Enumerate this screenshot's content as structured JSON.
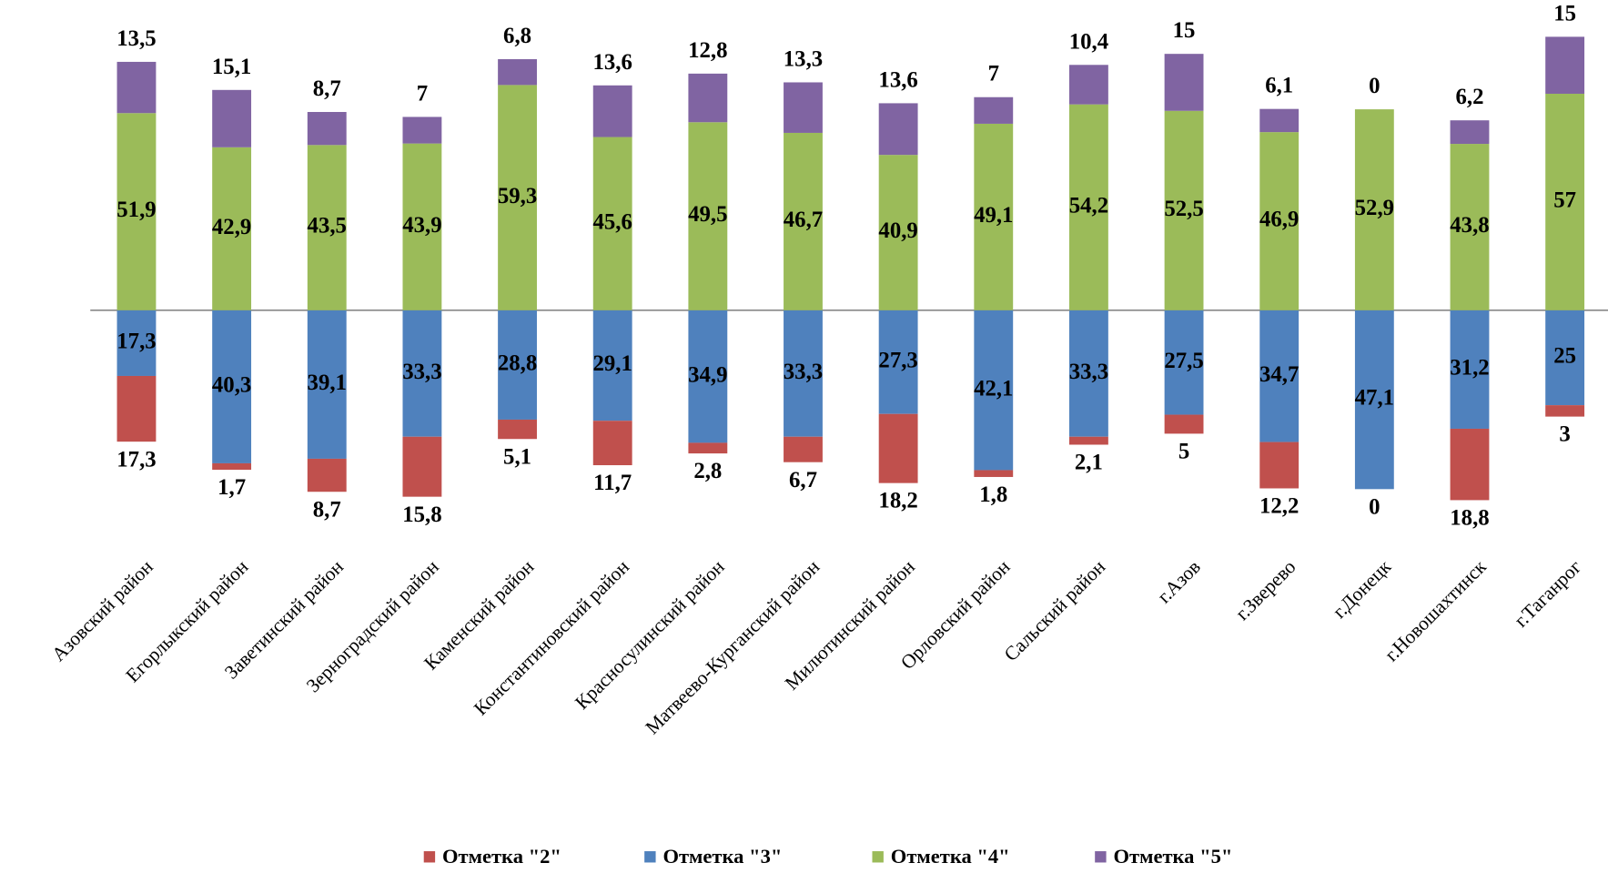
{
  "chart_data": {
    "type": "diverging-stacked-bar",
    "categories": [
      "Азовский район",
      "Егорлыкский район",
      "Заветинский район",
      "Зерноградский район",
      "Каменский район",
      "Константиновский район",
      "Красносулинский район",
      "Матвеево-Курганский район",
      "Милютинский район",
      "Орловский район",
      "Сальский район",
      "г.Азов",
      "г.Зверево",
      "г.Донецк",
      "г.Новошахтинск",
      "г.Таганрог"
    ],
    "series": [
      {
        "name": "Отметка \"2\"",
        "color": "#c0504d",
        "side": "below",
        "values": [
          17.3,
          1.7,
          8.7,
          15.8,
          5.1,
          11.7,
          2.8,
          6.7,
          18.2,
          1.8,
          2.1,
          5,
          12.2,
          0,
          18.8,
          3
        ],
        "value_labels": [
          "17,3",
          "1,7",
          "8,7",
          "15,8",
          "5,1",
          "11,7",
          "2,8",
          "6,7",
          "18,2",
          "1,8",
          "2,1",
          "5",
          "12,2",
          "0",
          "18,8",
          "3"
        ]
      },
      {
        "name": "Отметка \"3\"",
        "color": "#4f81bd",
        "side": "below",
        "values": [
          17.3,
          40.3,
          39.1,
          33.3,
          28.8,
          29.1,
          34.9,
          33.3,
          27.3,
          42.1,
          33.3,
          27.5,
          34.7,
          47.1,
          31.2,
          25
        ],
        "value_labels": [
          "17,3",
          "40,3",
          "39,1",
          "33,3",
          "28,8",
          "29,1",
          "34,9",
          "33,3",
          "27,3",
          "42,1",
          "33,3",
          "27,5",
          "34,7",
          "47,1",
          "31,2",
          "25"
        ]
      },
      {
        "name": "Отметка \"4\"",
        "color": "#9bbb59",
        "side": "above",
        "values": [
          51.9,
          42.9,
          43.5,
          43.9,
          59.3,
          45.6,
          49.5,
          46.7,
          40.9,
          49.1,
          54.2,
          52.5,
          46.9,
          52.9,
          43.8,
          57
        ],
        "value_labels": [
          "51,9",
          "42,9",
          "43,5",
          "43,9",
          "59,3",
          "45,6",
          "49,5",
          "46,7",
          "40,9",
          "49,1",
          "54,2",
          "52,5",
          "46,9",
          "52,9",
          "43,8",
          "57"
        ]
      },
      {
        "name": "Отметка \"5\"",
        "color": "#8064a2",
        "side": "above",
        "values": [
          13.5,
          15.1,
          8.7,
          7,
          6.8,
          13.6,
          12.8,
          13.3,
          13.6,
          7,
          10.4,
          15,
          6.1,
          0,
          6.2,
          15
        ],
        "value_labels": [
          "13,5",
          "15,1",
          "8,7",
          "7",
          "6,8",
          "13,6",
          "12,8",
          "13,3",
          "13,6",
          "7",
          "10,4",
          "15",
          "6,1",
          "0",
          "6,2",
          "15"
        ]
      }
    ],
    "legend": "bottom"
  }
}
